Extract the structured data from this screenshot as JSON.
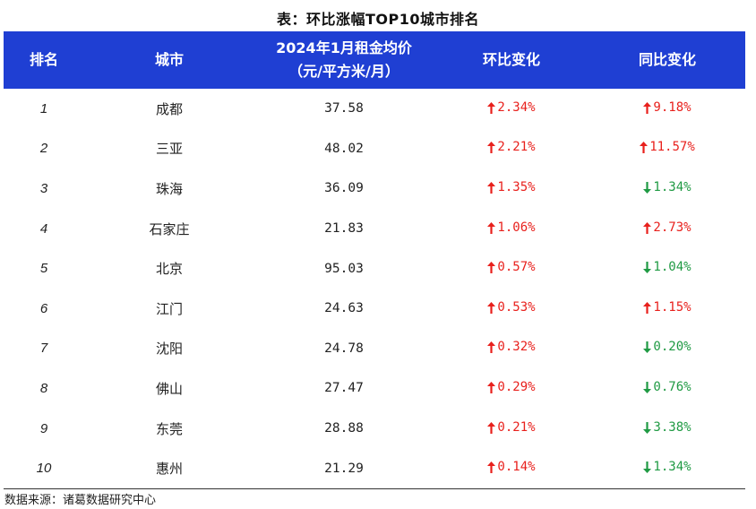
{
  "title": "表：环比涨幅TOP10城市排名",
  "headers": {
    "rank": "排名",
    "city": "城市",
    "rent_line1": "2024年1月租金均价",
    "rent_line2": "（元/平方米/月）",
    "mom": "环比变化",
    "yoy": "同比变化"
  },
  "colors": {
    "header_bg": "#1f3fd3",
    "up": "#e8201c",
    "down": "#1f9a43"
  },
  "rows": [
    {
      "rank": "1",
      "city": "成都",
      "rent": "37.58",
      "mom": "2.34%",
      "mom_dir": "up",
      "yoy": "9.18%",
      "yoy_dir": "up"
    },
    {
      "rank": "2",
      "city": "三亚",
      "rent": "48.02",
      "mom": "2.21%",
      "mom_dir": "up",
      "yoy": "11.57%",
      "yoy_dir": "up"
    },
    {
      "rank": "3",
      "city": "珠海",
      "rent": "36.09",
      "mom": "1.35%",
      "mom_dir": "up",
      "yoy": "1.34%",
      "yoy_dir": "down"
    },
    {
      "rank": "4",
      "city": "石家庄",
      "rent": "21.83",
      "mom": "1.06%",
      "mom_dir": "up",
      "yoy": "2.73%",
      "yoy_dir": "up"
    },
    {
      "rank": "5",
      "city": "北京",
      "rent": "95.03",
      "mom": "0.57%",
      "mom_dir": "up",
      "yoy": "1.04%",
      "yoy_dir": "down"
    },
    {
      "rank": "6",
      "city": "江门",
      "rent": "24.63",
      "mom": "0.53%",
      "mom_dir": "up",
      "yoy": "1.15%",
      "yoy_dir": "up"
    },
    {
      "rank": "7",
      "city": "沈阳",
      "rent": "24.78",
      "mom": "0.32%",
      "mom_dir": "up",
      "yoy": "0.20%",
      "yoy_dir": "down"
    },
    {
      "rank": "8",
      "city": "佛山",
      "rent": "27.47",
      "mom": "0.29%",
      "mom_dir": "up",
      "yoy": "0.76%",
      "yoy_dir": "down"
    },
    {
      "rank": "9",
      "city": "东莞",
      "rent": "28.88",
      "mom": "0.21%",
      "mom_dir": "up",
      "yoy": "3.38%",
      "yoy_dir": "down"
    },
    {
      "rank": "10",
      "city": "惠州",
      "rent": "21.29",
      "mom": "0.14%",
      "mom_dir": "up",
      "yoy": "1.34%",
      "yoy_dir": "down"
    }
  ],
  "source": "数据来源：诸葛数据研究中心"
}
